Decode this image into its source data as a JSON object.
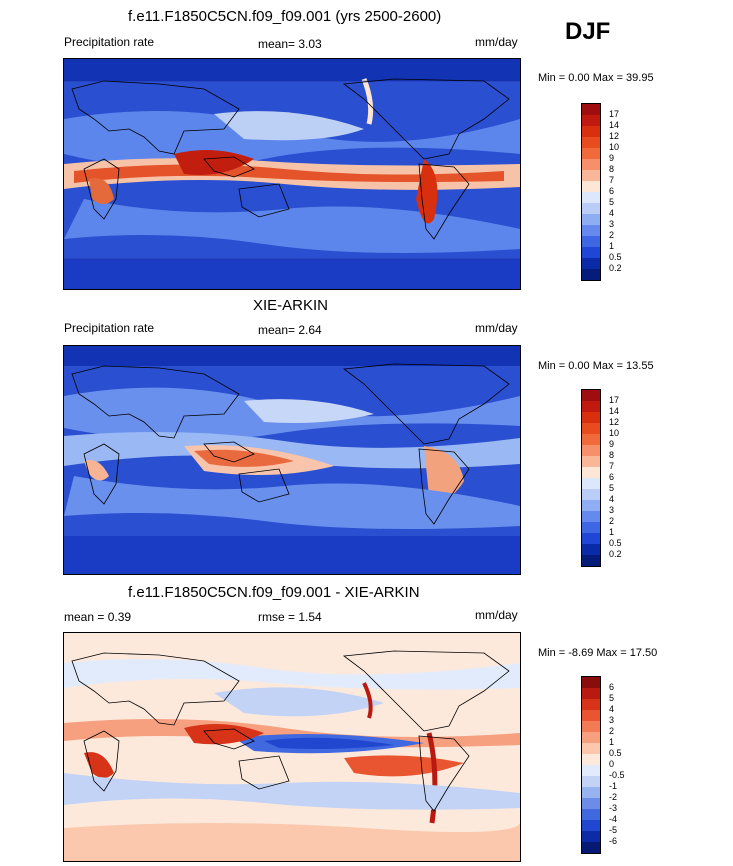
{
  "season": "DJF",
  "panels": [
    {
      "id": "model",
      "title": "f.e11.F1850C5CN.f09_f09.001 (yrs 2500-2600)",
      "left_label": "Precipitation rate",
      "center_label": "mean=  3.03",
      "units": "mm/day",
      "minmax": "Min =  0.00 Max = 39.95",
      "colorbar": {
        "levels": [
          "17",
          "14",
          "12",
          "10",
          "9",
          "8",
          "7",
          "6",
          "5",
          "4",
          "3",
          "2",
          "1",
          "0.5",
          "0.2"
        ],
        "colors": [
          "#9e0e0e",
          "#c01a10",
          "#d8300e",
          "#e84b1e",
          "#f06a3c",
          "#f5906a",
          "#f9b79a",
          "#fde6d6",
          "#dde7fb",
          "#b9cdf7",
          "#8fadf2",
          "#6589ec",
          "#3f66e3",
          "#2046d6",
          "#0b2aa8",
          "#061c7a"
        ]
      }
    },
    {
      "id": "obs",
      "title": "XIE-ARKIN",
      "left_label": "Precipitation rate",
      "center_label": "mean=  2.64",
      "units": "mm/day",
      "minmax": "Min =  0.00 Max = 13.55",
      "colorbar": {
        "levels": [
          "17",
          "14",
          "12",
          "10",
          "9",
          "8",
          "7",
          "6",
          "5",
          "4",
          "3",
          "2",
          "1",
          "0.5",
          "0.2"
        ],
        "colors": [
          "#9e0e0e",
          "#c01a10",
          "#d8300e",
          "#e84b1e",
          "#f06a3c",
          "#f5906a",
          "#f9b79a",
          "#fde6d6",
          "#dde7fb",
          "#b9cdf7",
          "#8fadf2",
          "#6589ec",
          "#3f66e3",
          "#2046d6",
          "#0b2aa8",
          "#061c7a"
        ]
      }
    },
    {
      "id": "diff",
      "title": "f.e11.F1850C5CN.f09_f09.001 - XIE-ARKIN",
      "left_label": "mean =  0.39",
      "center_label": "rmse =  1.54",
      "units": "mm/day",
      "minmax": "Min = -8.69 Max = 17.50",
      "colorbar": {
        "levels": [
          "6",
          "5",
          "4",
          "3",
          "2",
          "1",
          "0.5",
          "0",
          "-0.5",
          "-1",
          "-2",
          "-3",
          "-4",
          "-5",
          "-6"
        ],
        "colors": [
          "#8a0d0d",
          "#b81a12",
          "#d63318",
          "#e85530",
          "#f27a55",
          "#f7a080",
          "#fbc8ae",
          "#fde9dc",
          "#e2ebfb",
          "#c2d3f6",
          "#97b3f0",
          "#6b8de8",
          "#4068df",
          "#2146cf",
          "#0c2ba5",
          "#061a73"
        ]
      }
    }
  ],
  "chart_data": [
    {
      "type": "heatmap",
      "title": "f.e11.F1850C5CN.f09_f09.001 (yrs 2500-2600)",
      "variable": "Precipitation rate",
      "units": "mm/day",
      "mean": 3.03,
      "min": 0.0,
      "max": 39.95,
      "contour_levels": [
        0.2,
        0.5,
        1,
        2,
        3,
        4,
        5,
        6,
        7,
        8,
        9,
        10,
        12,
        14,
        17
      ]
    },
    {
      "type": "heatmap",
      "title": "XIE-ARKIN",
      "variable": "Precipitation rate",
      "units": "mm/day",
      "mean": 2.64,
      "min": 0.0,
      "max": 13.55,
      "contour_levels": [
        0.2,
        0.5,
        1,
        2,
        3,
        4,
        5,
        6,
        7,
        8,
        9,
        10,
        12,
        14,
        17
      ]
    },
    {
      "type": "heatmap",
      "title": "f.e11.F1850C5CN.f09_f09.001 - XIE-ARKIN",
      "units": "mm/day",
      "mean": 0.39,
      "rmse": 1.54,
      "min": -8.69,
      "max": 17.5,
      "contour_levels": [
        -6,
        -5,
        -4,
        -3,
        -2,
        -1,
        -0.5,
        0,
        0.5,
        1,
        2,
        3,
        4,
        5,
        6
      ]
    }
  ]
}
